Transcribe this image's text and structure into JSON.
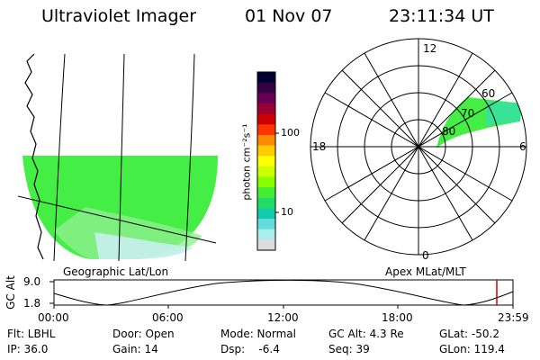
{
  "header": {
    "instrument": "Ultraviolet Imager",
    "date": "01 Nov 07",
    "time": "23:11:34 UT"
  },
  "geo_panel": {
    "label": "Geographic Lat/Lon"
  },
  "polar_panel": {
    "label": "Apex MLat/MLT",
    "mlt_labels": [
      "12",
      "18",
      "6",
      "0"
    ],
    "lat_labels": [
      "80",
      "70",
      "60"
    ]
  },
  "colorbar": {
    "unit_label": "photon cm⁻²s⁻¹",
    "ticks": [
      "100",
      "10"
    ],
    "colors": [
      "#000033",
      "#330044",
      "#660055",
      "#990033",
      "#cc0000",
      "#ff3300",
      "#ff8800",
      "#ffcc00",
      "#ffff00",
      "#ccff00",
      "#88ff00",
      "#44ee33",
      "#22dd66",
      "#11ccaa",
      "#66dddd",
      "#aaeeee",
      "#dddddd"
    ]
  },
  "timeline": {
    "y_label": "GC Alt",
    "y_ticks": [
      "9.0",
      "1.8"
    ],
    "x_ticks": [
      "00:00",
      "06:00",
      "12:00",
      "18:00",
      "23:59"
    ],
    "marker_color": "#cc0000"
  },
  "status": {
    "flt": "Flt: LBHL",
    "ip": "IP: 36.0",
    "door": "Door: Open",
    "gain": "Gain: 14",
    "mode": "Mode: Normal",
    "dsp": "Dsp:    -6.4",
    "gc_alt": "GC Alt: 4.3 Re",
    "seq": "Seq: 39",
    "glat": "GLat: -50.2",
    "glon": "GLon: 119.4"
  }
}
